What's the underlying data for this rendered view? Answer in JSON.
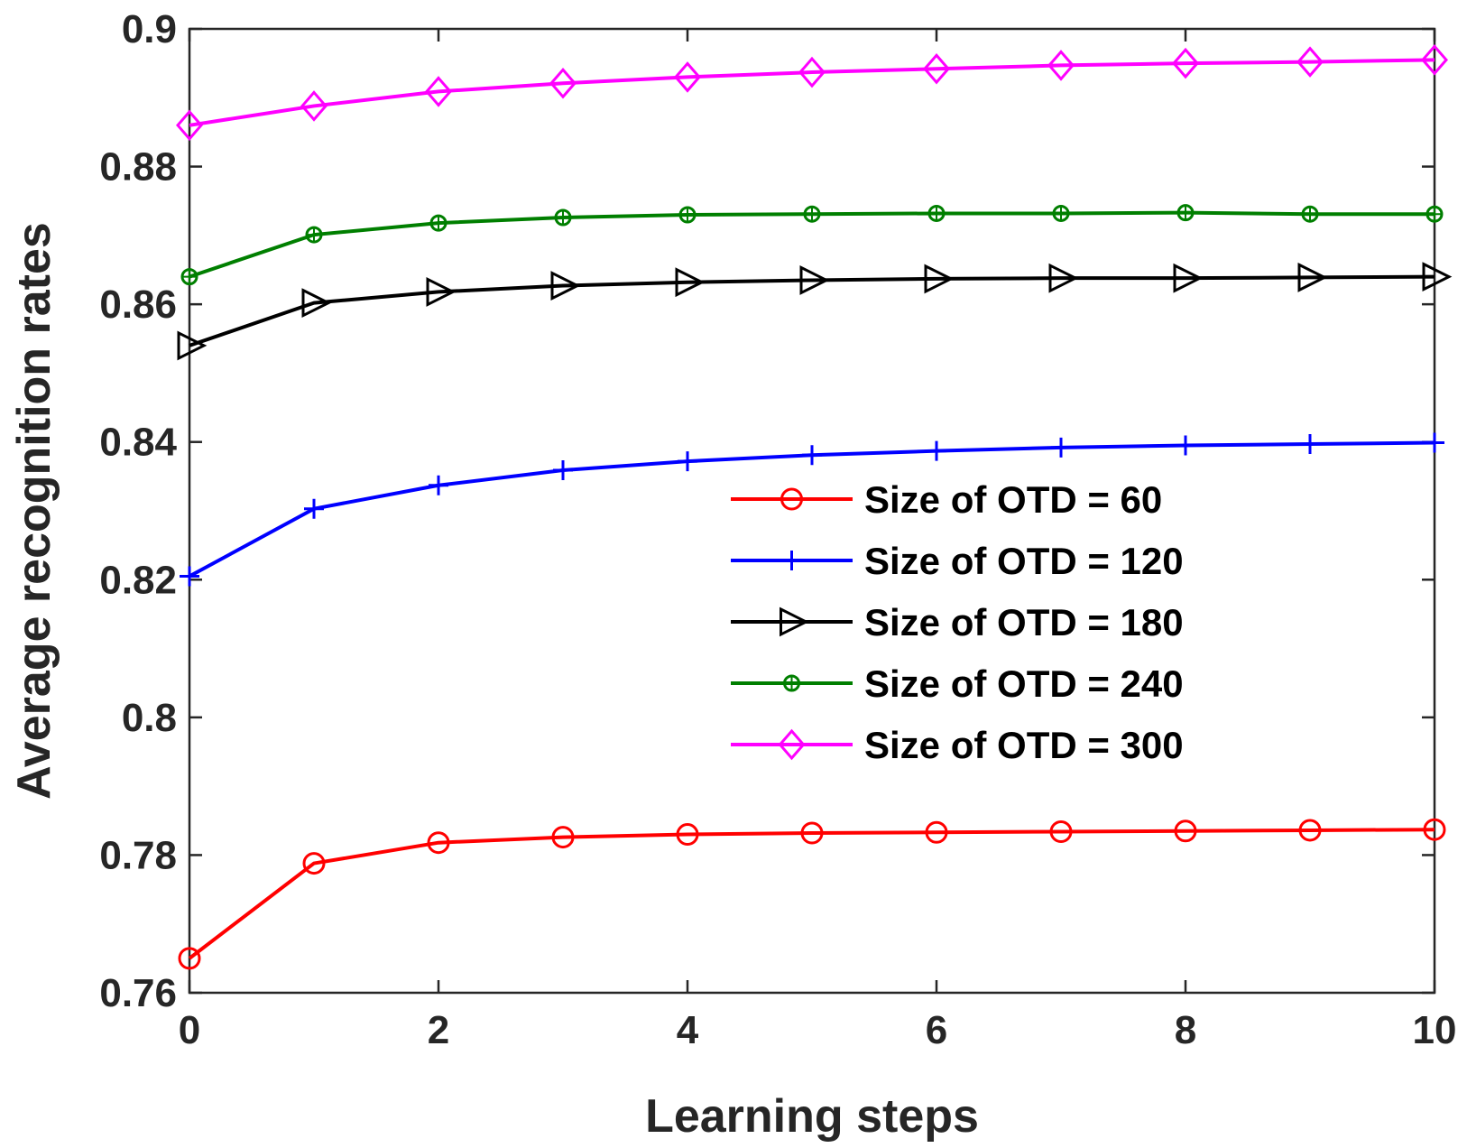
{
  "chart_data": {
    "type": "line",
    "title": "",
    "xlabel": "Learning steps",
    "ylabel": "Average recognition rates",
    "xlim": [
      0,
      10
    ],
    "ylim": [
      0.76,
      0.9
    ],
    "xticks": [
      0,
      2,
      4,
      6,
      8,
      10
    ],
    "xtick_labels": [
      "0",
      "2",
      "4",
      "6",
      "8",
      "10"
    ],
    "yticks": [
      0.76,
      0.78,
      0.8,
      0.82,
      0.84,
      0.86,
      0.88,
      0.9
    ],
    "ytick_labels": [
      "0.76",
      "0.78",
      "0.8",
      "0.82",
      "0.84",
      "0.86",
      "0.88",
      "0.9"
    ],
    "grid": false,
    "legend_position": "center-right",
    "x": [
      0,
      1,
      2,
      3,
      4,
      5,
      6,
      7,
      8,
      9,
      10
    ],
    "series": [
      {
        "name": "Size of OTD = 60",
        "color": "#ff0000",
        "marker": "circle",
        "values": [
          0.765,
          0.7788,
          0.7818,
          0.7826,
          0.783,
          0.7832,
          0.7833,
          0.7834,
          0.7835,
          0.7836,
          0.7837
        ]
      },
      {
        "name": "Size of OTD = 120",
        "color": "#0000ff",
        "marker": "plus",
        "values": [
          0.8205,
          0.8303,
          0.8337,
          0.8359,
          0.8372,
          0.8381,
          0.8387,
          0.8392,
          0.8395,
          0.8397,
          0.8399
        ]
      },
      {
        "name": "Size of OTD = 180",
        "color": "#000000",
        "marker": "triangle-right",
        "values": [
          0.854,
          0.8602,
          0.8618,
          0.8627,
          0.8632,
          0.8635,
          0.8637,
          0.8638,
          0.8638,
          0.8639,
          0.864
        ]
      },
      {
        "name": "Size of OTD = 240",
        "color": "#007f00",
        "marker": "asterisk",
        "values": [
          0.864,
          0.8701,
          0.8718,
          0.8726,
          0.873,
          0.8731,
          0.8732,
          0.8732,
          0.8733,
          0.8731,
          0.8731
        ]
      },
      {
        "name": "Size of OTD = 300",
        "color": "#ff00ff",
        "marker": "diamond",
        "values": [
          0.886,
          0.8888,
          0.8909,
          0.8921,
          0.893,
          0.8937,
          0.8942,
          0.8947,
          0.895,
          0.8952,
          0.8955
        ]
      }
    ]
  }
}
